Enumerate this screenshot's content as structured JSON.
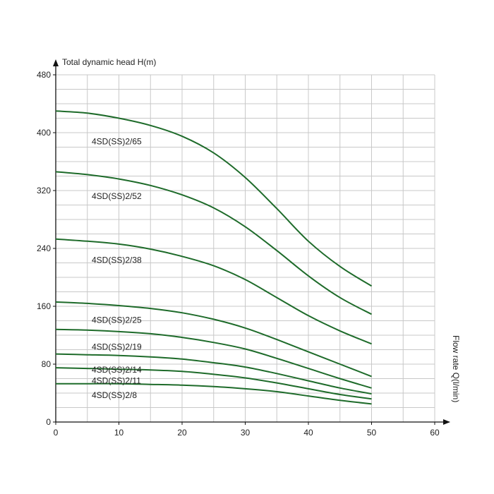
{
  "chart_data": {
    "type": "line",
    "xlabel": "Flow rate Q(l/min)",
    "ylabel": "Total dynamic head H(m)",
    "xlim": [
      0,
      60
    ],
    "ylim": [
      0,
      480
    ],
    "x_ticks": [
      "0",
      "10",
      "20",
      "30",
      "40",
      "50",
      "60"
    ],
    "y_ticks": [
      "0",
      "80",
      "160",
      "240",
      "320",
      "400",
      "480"
    ],
    "grid": true,
    "line_color": "#1e6b2a",
    "x": [
      0,
      5,
      10,
      15,
      20,
      25,
      30,
      35,
      40,
      45,
      50
    ],
    "series": [
      {
        "name": "4SD(SS)2/65",
        "values": [
          430,
          427,
          420,
          410,
          395,
          372,
          338,
          295,
          250,
          215,
          188
        ]
      },
      {
        "name": "4SD(SS)2/52",
        "values": [
          346,
          342,
          336,
          327,
          314,
          296,
          270,
          237,
          202,
          172,
          149
        ]
      },
      {
        "name": "4SD(SS)2/38",
        "values": [
          253,
          250,
          246,
          239,
          229,
          216,
          197,
          172,
          147,
          126,
          108
        ]
      },
      {
        "name": "4SD(SS)2/25",
        "values": [
          166,
          164,
          161,
          157,
          151,
          142,
          130,
          114,
          97,
          80,
          63
        ]
      },
      {
        "name": "4SD(SS)2/19",
        "values": [
          128,
          127,
          125,
          122,
          117,
          110,
          101,
          88,
          74,
          60,
          47
        ]
      },
      {
        "name": "4SD(SS)2/14",
        "values": [
          94,
          93,
          92,
          90,
          87,
          82,
          76,
          67,
          57,
          47,
          39
        ]
      },
      {
        "name": "4SD(SS)2/11",
        "values": [
          75,
          74,
          73,
          72,
          70,
          66,
          61,
          54,
          46,
          38,
          32
        ]
      },
      {
        "name": "4SD(SS)2/8",
        "values": [
          53,
          53,
          53,
          52,
          51,
          49,
          46,
          42,
          36,
          30,
          25
        ]
      }
    ]
  }
}
